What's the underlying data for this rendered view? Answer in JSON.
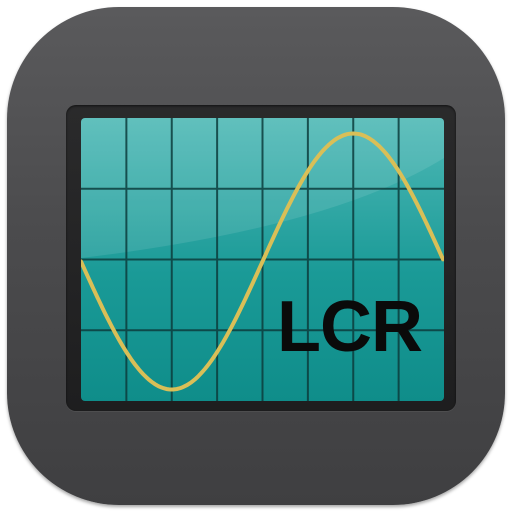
{
  "icon": {
    "label": "LCR",
    "depicts": "oscilloscope-screen",
    "colors": {
      "body": "#4b4b4d",
      "bezel": "#222223",
      "screen": "#12928f",
      "grid": "#0b3b3b",
      "trace": "#d9bf57",
      "label": "#0a0a0a"
    }
  }
}
